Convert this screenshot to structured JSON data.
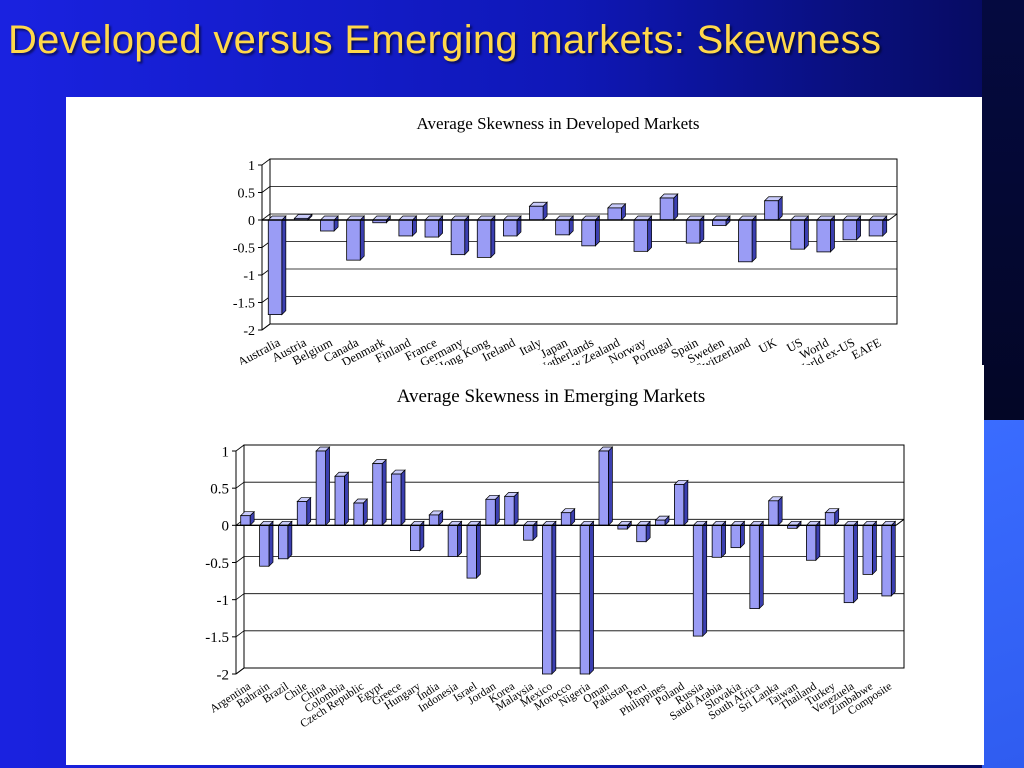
{
  "slide": {
    "title": "Developed versus Emerging markets: Skewness"
  },
  "colors": {
    "bar": "#9a9cf5",
    "bar_top": "#c9cbfb",
    "bar_side": "#3b3fb0",
    "title": "#ffd84a"
  },
  "chart_data": [
    {
      "type": "bar",
      "title": "Average Skewness in Developed Markets",
      "ylim": [
        -2,
        1
      ],
      "yticks": [
        "1",
        "0.5",
        "0",
        "-0.5",
        "-1",
        "-1.5",
        "-2"
      ],
      "grid": true,
      "categories": [
        "Australia",
        "Austria",
        "Belgium",
        "Canada",
        "Denmark",
        "Finland",
        "France",
        "Germany",
        "Hong Kong",
        "Ireland",
        "Italy",
        "Japan",
        "Netherlands",
        "New Zealand",
        "Norway",
        "Portugal",
        "Spain",
        "Sweden",
        "Switzerland",
        "UK",
        "US",
        "World",
        "World ex-US",
        "EAFE"
      ],
      "values": [
        -1.72,
        0.03,
        -0.2,
        -0.73,
        -0.05,
        -0.29,
        -0.31,
        -0.63,
        -0.68,
        -0.29,
        0.25,
        -0.27,
        -0.47,
        0.22,
        -0.57,
        0.4,
        -0.42,
        -0.1,
        -0.76,
        0.35,
        -0.53,
        -0.58,
        -0.36,
        -0.29
      ]
    },
    {
      "type": "bar",
      "title": "Average Skewness in Emerging Markets",
      "ylim": [
        -2,
        1
      ],
      "yticks": [
        "1",
        "0.5",
        "0",
        "-0.5",
        "-1",
        "-1.5",
        "-2"
      ],
      "grid": true,
      "categories": [
        "Argentina",
        "Bahrain",
        "Brazil",
        "Chile",
        "China",
        "Colombia",
        "Czech Republic",
        "Egypt",
        "Greece",
        "Hungary",
        "India",
        "Indonesia",
        "Israel",
        "Jordan",
        "Korea",
        "Malaysia",
        "Mexico",
        "Morocco",
        "Nigeria",
        "Oman",
        "Pakistan",
        "Peru",
        "Philippines",
        "Poland",
        "Russia",
        "Saudi Arabia",
        "Slovakia",
        "South Africa",
        "Sri Lanka",
        "Taiwan",
        "Thailand",
        "Turkey",
        "Venezuela",
        "Zimbabwe",
        "Composite"
      ],
      "values": [
        0.13,
        -0.55,
        -0.45,
        0.32,
        1.0,
        0.66,
        0.3,
        0.83,
        0.69,
        -0.34,
        0.14,
        -0.42,
        -0.71,
        0.35,
        0.39,
        -0.2,
        -2.0,
        0.17,
        -2.0,
        1.0,
        -0.05,
        -0.22,
        0.07,
        0.55,
        -1.49,
        -0.43,
        -0.3,
        -1.12,
        0.33,
        -0.04,
        -0.47,
        0.17,
        -1.04,
        -0.66,
        -0.95
      ]
    }
  ]
}
